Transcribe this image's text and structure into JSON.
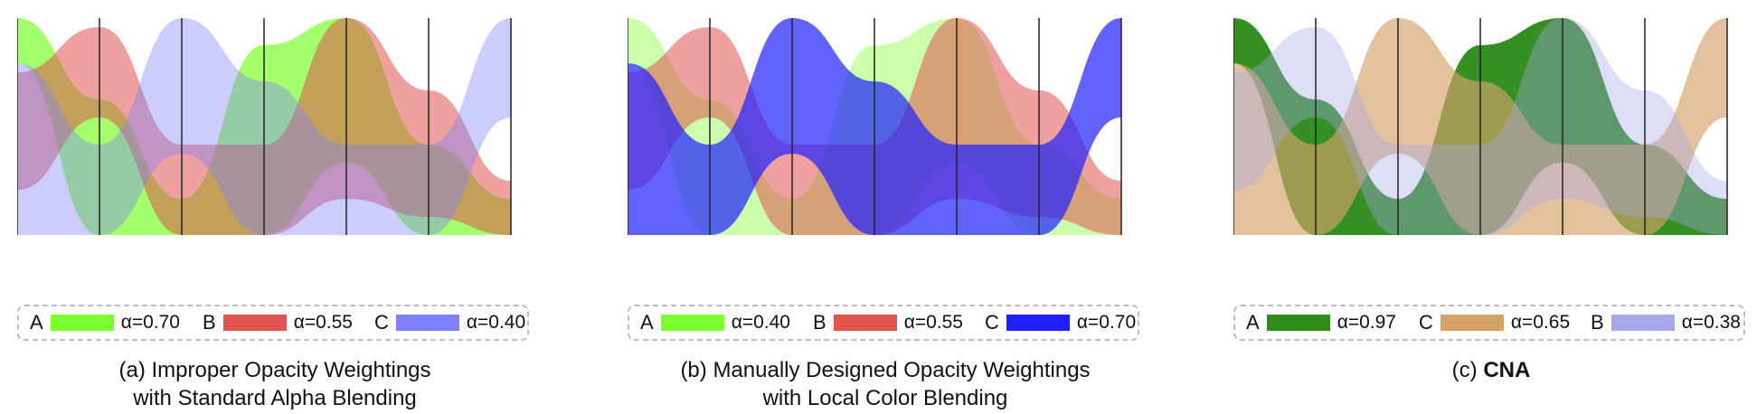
{
  "panels": [
    {
      "id": "a",
      "caption_line1": "(a) Improper Opacity Weightings",
      "caption_line2": "with Standard Alpha Blending",
      "caption_prefix": "",
      "caption_bold": "",
      "legend": [
        {
          "name": "A",
          "color": "#7cff2e",
          "alpha_label": "α=0.70",
          "alpha": 0.7
        },
        {
          "name": "B",
          "color": "#e0534f",
          "alpha_label": "α=0.55",
          "alpha": 0.55
        },
        {
          "name": "C",
          "color": "#8080ff",
          "alpha_label": "α=0.40",
          "alpha": 0.4
        }
      ],
      "draw_order": [
        "A",
        "B",
        "C"
      ]
    },
    {
      "id": "b",
      "caption_line1": "(b) Manually Designed Opacity Weightings",
      "caption_line2": "with Local Color Blending",
      "caption_prefix": "",
      "caption_bold": "",
      "legend": [
        {
          "name": "A",
          "color": "#7cff2e",
          "alpha_label": "α=0.40",
          "alpha": 0.4
        },
        {
          "name": "B",
          "color": "#e0534f",
          "alpha_label": "α=0.55",
          "alpha": 0.55
        },
        {
          "name": "C",
          "color": "#1f1fff",
          "alpha_label": "α=0.70",
          "alpha": 0.7
        }
      ],
      "draw_order": [
        "A",
        "B",
        "C"
      ]
    },
    {
      "id": "c",
      "caption_line1": "",
      "caption_line2": "",
      "caption_prefix": "(c) ",
      "caption_bold": "CNA",
      "legend": [
        {
          "name": "A",
          "color": "#2e8b1c",
          "alpha_label": "α=0.97",
          "alpha": 0.97
        },
        {
          "name": "C",
          "color": "#d4a268",
          "alpha_label": "α=0.65",
          "alpha": 0.65
        },
        {
          "name": "B",
          "color": "#a8a8ea",
          "alpha_label": "α=0.38",
          "alpha": 0.38
        }
      ],
      "draw_order": [
        "A",
        "C",
        "B"
      ]
    }
  ]
}
